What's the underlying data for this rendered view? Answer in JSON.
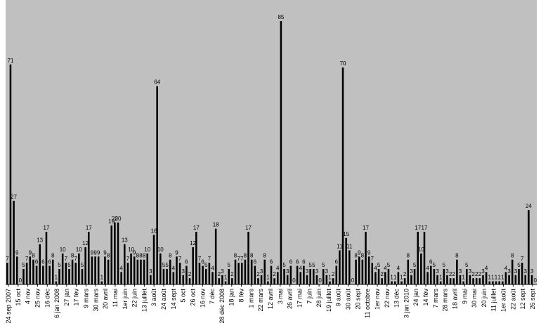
{
  "chart_data": {
    "type": "bar",
    "title": "",
    "xlabel": "",
    "ylabel": "",
    "ylim": [
      0,
      85
    ],
    "grid": false,
    "legend": "none",
    "colors": {
      "plot_background": "#c0c0c0",
      "bar": "#000000",
      "axis": "#000000"
    },
    "x_tick_labels": [
      "24 sep 2007",
      "15 oct",
      "4 nov",
      "25 nov",
      "16 déc",
      "6 jan 2008",
      "27 jan",
      "17 fév",
      "9 mars",
      "30 mars",
      "20 avril",
      "11 mai",
      "1er juin",
      "22 juin",
      "13 juillet",
      "3 août",
      "24 août",
      "14 sept",
      "5 oct",
      "26 oct",
      "16 nov",
      "7 déc",
      "28 déc 2008",
      "18 jan",
      "8 fév",
      "1 mars",
      "22 mars",
      "12 avril",
      "3 mai",
      "26 avril",
      "17 mai",
      "7 juin",
      "28 juin",
      "19 juillet",
      "9 août",
      "30 août",
      "20 sept",
      "11 octobre",
      "1er nov",
      "22 nov",
      "13 déc",
      "3 jan 2010",
      "24 jan",
      "14 fév",
      "7 mars",
      "28 mars",
      "18 avril",
      "9 mai",
      "30 mai",
      "20 juin",
      "11 juillet",
      "1er août",
      "22 août",
      "12 sept",
      "26 sept"
    ],
    "values": [
      7,
      71,
      27,
      9,
      0,
      5,
      7,
      9,
      8,
      6,
      13,
      6,
      17,
      6,
      8,
      1,
      5,
      10,
      7,
      5,
      8,
      7,
      10,
      5,
      12,
      17,
      9,
      9,
      9,
      1,
      9,
      8,
      19,
      20,
      20,
      4,
      13,
      7,
      10,
      9,
      8,
      8,
      8,
      10,
      3,
      16,
      64,
      10,
      5,
      5,
      8,
      4,
      9,
      7,
      3,
      6,
      2,
      12,
      17,
      7,
      6,
      5,
      7,
      4,
      18,
      2,
      3,
      1,
      5,
      2,
      8,
      7,
      7,
      8,
      17,
      8,
      6,
      2,
      3,
      8,
      1,
      6,
      2,
      4,
      85,
      5,
      3,
      6,
      0,
      6,
      4,
      6,
      3,
      5,
      5,
      3,
      0,
      5,
      3,
      1,
      2,
      6,
      11,
      70,
      15,
      11,
      0,
      8,
      9,
      8,
      17,
      9,
      7,
      4,
      5,
      2,
      4,
      5,
      1,
      1,
      4,
      1,
      2,
      8,
      3,
      5,
      17,
      10,
      17,
      4,
      6,
      5,
      3,
      1,
      5,
      3,
      2,
      2,
      8,
      3,
      1,
      5,
      3,
      2,
      2,
      2,
      3,
      4,
      1,
      1,
      1,
      1,
      1,
      4,
      3,
      8,
      3,
      5,
      7,
      3,
      24,
      3,
      0
    ]
  }
}
